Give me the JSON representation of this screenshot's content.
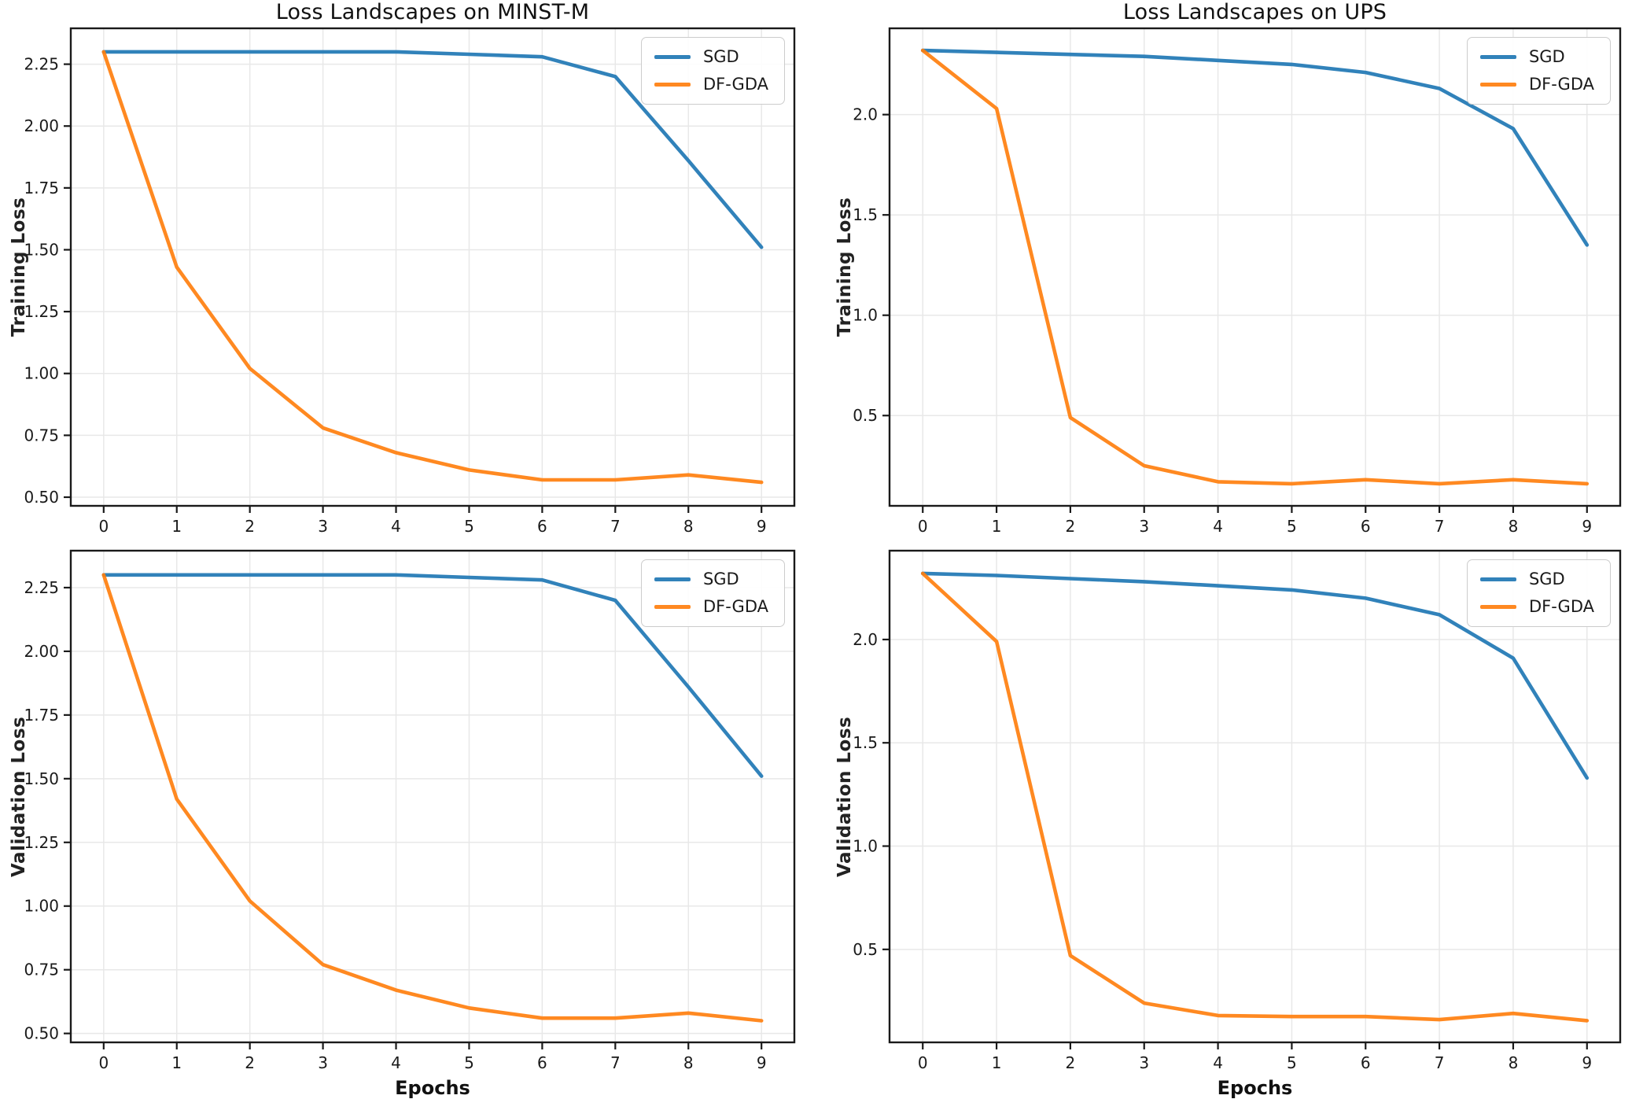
{
  "figure": {
    "background": "#ffffff",
    "grid_color": "#e8e8e8",
    "spine_color": "#1a1a1a",
    "tick_label_color": "#1a1a1a"
  },
  "chart_data": [
    {
      "type": "line",
      "title": "Loss Landscapes on MINST-M",
      "ylabel": "Training Loss",
      "xlabel": "",
      "x": [
        0,
        1,
        2,
        3,
        4,
        5,
        6,
        7,
        8,
        9
      ],
      "xtick_labels": [
        "0",
        "1",
        "2",
        "3",
        "4",
        "5",
        "6",
        "7",
        "8",
        "9"
      ],
      "ytick_values": [
        0.5,
        0.75,
        1.0,
        1.25,
        1.5,
        1.75,
        2.0,
        2.25
      ],
      "ytick_labels": [
        "0.50",
        "0.75",
        "1.00",
        "1.25",
        "1.50",
        "1.75",
        "2.00",
        "2.25"
      ],
      "xlim": [
        -0.45,
        9.45
      ],
      "ylim": [
        0.465,
        2.395
      ],
      "grid": true,
      "legend_position": "upper right",
      "series": [
        {
          "name": "SGD",
          "color": "#1f77b4",
          "values": [
            2.3,
            2.3,
            2.3,
            2.3,
            2.3,
            2.29,
            2.28,
            2.2,
            1.86,
            1.51
          ]
        },
        {
          "name": "DF-GDA",
          "color": "#ff7f0e",
          "values": [
            2.3,
            1.43,
            1.02,
            0.78,
            0.68,
            0.61,
            0.57,
            0.57,
            0.59,
            0.56
          ]
        }
      ]
    },
    {
      "type": "line",
      "title": "Loss Landscapes on UPS",
      "ylabel": "Training Loss",
      "xlabel": "",
      "x": [
        0,
        1,
        2,
        3,
        4,
        5,
        6,
        7,
        8,
        9
      ],
      "xtick_labels": [
        "0",
        "1",
        "2",
        "3",
        "4",
        "5",
        "6",
        "7",
        "8",
        "9"
      ],
      "ytick_values": [
        0.5,
        1.0,
        1.5,
        2.0
      ],
      "ytick_labels": [
        "0.5",
        "1.0",
        "1.5",
        "2.0"
      ],
      "xlim": [
        -0.45,
        9.45
      ],
      "ylim": [
        0.05,
        2.43
      ],
      "grid": true,
      "legend_position": "upper right",
      "series": [
        {
          "name": "SGD",
          "color": "#1f77b4",
          "values": [
            2.32,
            2.31,
            2.3,
            2.29,
            2.27,
            2.25,
            2.21,
            2.13,
            1.93,
            1.35
          ]
        },
        {
          "name": "DF-GDA",
          "color": "#ff7f0e",
          "values": [
            2.32,
            2.03,
            0.49,
            0.25,
            0.17,
            0.16,
            0.18,
            0.16,
            0.18,
            0.16
          ]
        }
      ]
    },
    {
      "type": "line",
      "title": "",
      "ylabel": "Validation Loss",
      "xlabel": "Epochs",
      "x": [
        0,
        1,
        2,
        3,
        4,
        5,
        6,
        7,
        8,
        9
      ],
      "xtick_labels": [
        "0",
        "1",
        "2",
        "3",
        "4",
        "5",
        "6",
        "7",
        "8",
        "9"
      ],
      "ytick_values": [
        0.5,
        0.75,
        1.0,
        1.25,
        1.5,
        1.75,
        2.0,
        2.25
      ],
      "ytick_labels": [
        "0.50",
        "0.75",
        "1.00",
        "1.25",
        "1.50",
        "1.75",
        "2.00",
        "2.25"
      ],
      "xlim": [
        -0.45,
        9.45
      ],
      "ylim": [
        0.465,
        2.395
      ],
      "grid": true,
      "legend_position": "upper right",
      "series": [
        {
          "name": "SGD",
          "color": "#1f77b4",
          "values": [
            2.3,
            2.3,
            2.3,
            2.3,
            2.3,
            2.29,
            2.28,
            2.2,
            1.86,
            1.51
          ]
        },
        {
          "name": "DF-GDA",
          "color": "#ff7f0e",
          "values": [
            2.3,
            1.42,
            1.02,
            0.77,
            0.67,
            0.6,
            0.56,
            0.56,
            0.58,
            0.55
          ]
        }
      ]
    },
    {
      "type": "line",
      "title": "",
      "ylabel": "Validation Loss",
      "xlabel": "Epochs",
      "x": [
        0,
        1,
        2,
        3,
        4,
        5,
        6,
        7,
        8,
        9
      ],
      "xtick_labels": [
        "0",
        "1",
        "2",
        "3",
        "4",
        "5",
        "6",
        "7",
        "8",
        "9"
      ],
      "ytick_values": [
        0.5,
        1.0,
        1.5,
        2.0
      ],
      "ytick_labels": [
        "0.5",
        "1.0",
        "1.5",
        "2.0"
      ],
      "xlim": [
        -0.45,
        9.45
      ],
      "ylim": [
        0.05,
        2.43
      ],
      "grid": true,
      "legend_position": "upper right",
      "series": [
        {
          "name": "SGD",
          "color": "#1f77b4",
          "values": [
            2.32,
            2.31,
            2.295,
            2.28,
            2.26,
            2.24,
            2.2,
            2.12,
            1.91,
            1.33
          ]
        },
        {
          "name": "DF-GDA",
          "color": "#ff7f0e",
          "values": [
            2.32,
            1.99,
            0.47,
            0.24,
            0.18,
            0.175,
            0.175,
            0.16,
            0.19,
            0.155
          ]
        }
      ]
    }
  ]
}
